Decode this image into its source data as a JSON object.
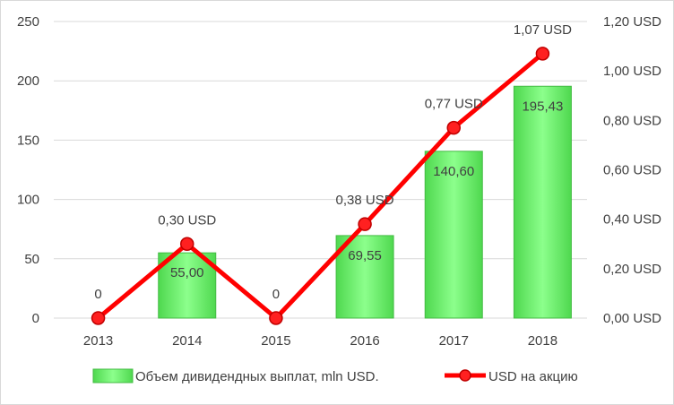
{
  "chart_data": {
    "type": "bar",
    "categories": [
      "2013",
      "2014",
      "2015",
      "2016",
      "2017",
      "2018"
    ],
    "series": [
      {
        "name": "Объем дивидендных выплат, mln USD.",
        "kind": "bar",
        "axis": "left",
        "color": "#66ff66",
        "values": [
          0,
          55.0,
          0,
          69.55,
          140.6,
          195.43
        ],
        "labels": [
          "",
          "55,00",
          "",
          "69,55",
          "140,60",
          "195,43"
        ]
      },
      {
        "name": "USD на акцию",
        "kind": "line",
        "axis": "right",
        "color": "#ff0000",
        "values": [
          0,
          0.3,
          0,
          0.38,
          0.77,
          1.07
        ],
        "labels": [
          "0",
          "0,30 USD",
          "0",
          "0,38 USD",
          "0,77 USD",
          "1,07 USD"
        ]
      }
    ],
    "y_left": {
      "ylim": [
        0,
        250
      ],
      "ticks": [
        0,
        50,
        100,
        150,
        200,
        250
      ],
      "tick_labels": [
        "0",
        "50",
        "100",
        "150",
        "200",
        "250"
      ]
    },
    "y_right": {
      "ylim": [
        0,
        1.2
      ],
      "ticks": [
        0,
        0.2,
        0.4,
        0.6,
        0.8,
        1.0,
        1.2
      ],
      "tick_labels": [
        "0,00 USD",
        "0,20 USD",
        "0,40 USD",
        "0,60 USD",
        "0,80 USD",
        "1,00 USD",
        "1,20 USD"
      ]
    },
    "grid": true,
    "legend": "bottom"
  }
}
